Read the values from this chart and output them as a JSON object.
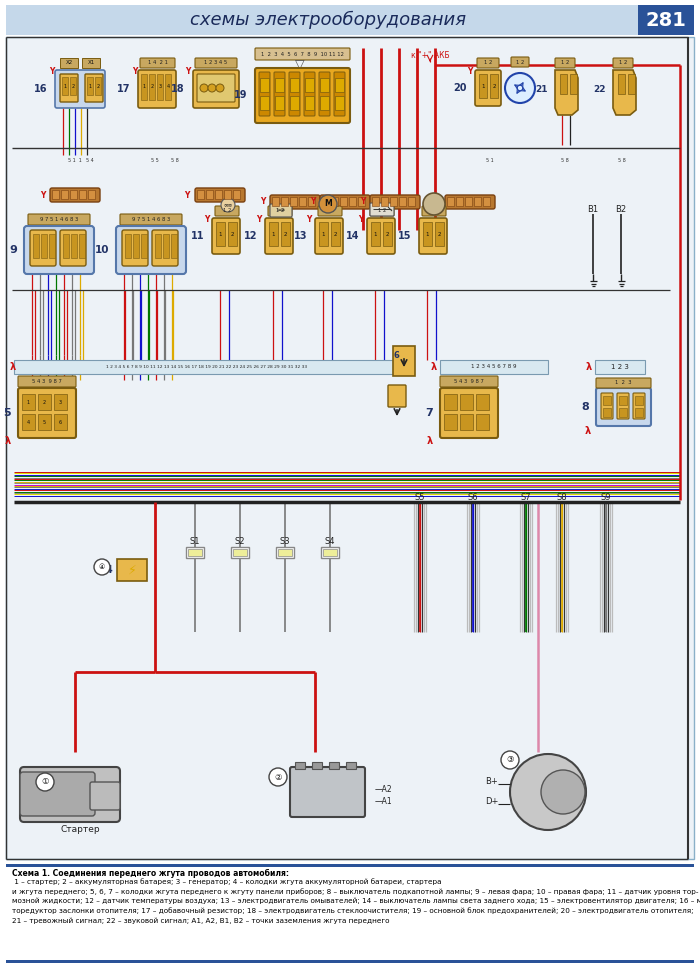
{
  "page_bg": "#ffffff",
  "diagram_bg": "#f0f4f8",
  "header_bg": "#c5d8ea",
  "header_text": "схемы электрооборудования",
  "header_page_num": "281",
  "header_num_bg": "#2a5298",
  "border_color": "#8ab0c8",
  "caption_bold": "Схема 1. Соединения переднего жгута проводов автомобиля:",
  "caption_lines": [
    " 1 – стартер; 2 – аккумуляторная батарея; 3 – генератор; 4 – колодки жгута аккумуляторной батареи, стартера",
    "и жгута переднего; 5, 6, 7 – колодки жгута переднего к жгуту панели приборов; 8 – выключатель подкапотной лампы; 9 – левая фара; 10 – правая фара; 11 – датчик уровня тор-",
    "мозной жидкости; 12 – датчик температуры воздуха; 13 – электродвигатель омывателей; 14 – выключатель лампы света заднего хода; 15 – электровентилятор двигателя; 16 – мо-",
    "торедуктор заслонки отопителя; 17 – добавочный резистор; 18 – электродвигатель стеклоочистителя; 19 – основной блок предохранителей; 20 – электродвигатель отопителя;",
    "21 – тревожный сигнал; 22 – звуковой сигнал; A1, A2, B1, B2 – точки заземления жгута переднего"
  ],
  "connector_yellow": "#e8b84b",
  "connector_orange": "#d4913a",
  "connector_border": "#7a5c10",
  "connector_pin": "#c89520",
  "connector_blue_bg": "#c8d8ec",
  "red_wire": "#cc1111",
  "black_wire": "#222222",
  "blue_wire": "#1111cc",
  "green_wire": "#007700",
  "yellow_wire": "#ddaa00",
  "white_wire": "#dddddd",
  "pink_wire": "#dd88aa",
  "cyan_wire": "#0099bb",
  "brown_wire": "#774422"
}
